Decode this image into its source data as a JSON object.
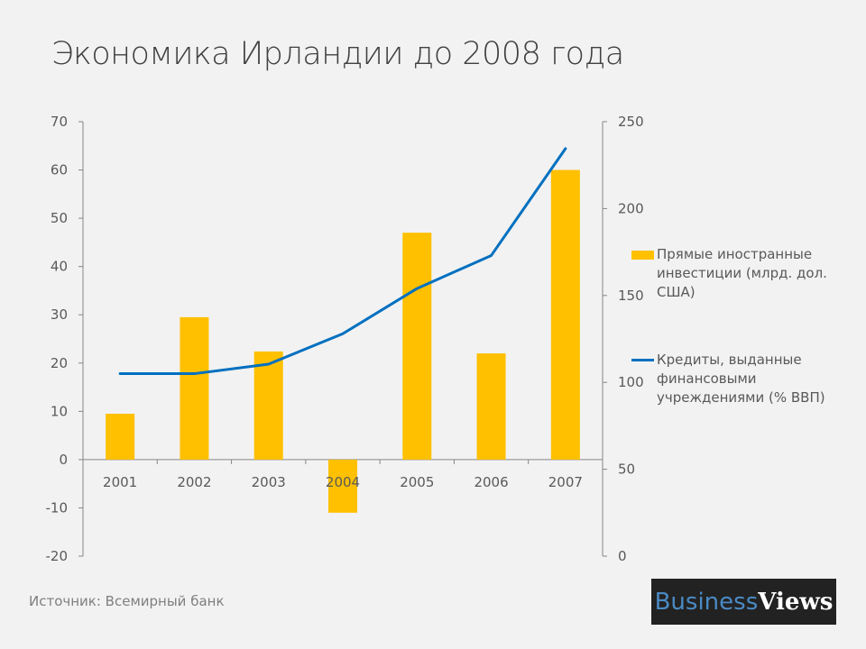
{
  "chart_data": {
    "type": "bar+line",
    "title": "Экономика Ирландии до 2008 года",
    "categories": [
      "2001",
      "2002",
      "2003",
      "2004",
      "2005",
      "2006",
      "2007"
    ],
    "series": [
      {
        "name": "Прямые иностранные инвестиции (млрд. дол. США)",
        "type": "bar",
        "axis": "left",
        "color": "#ffc000",
        "values": [
          9.5,
          29.5,
          22.4,
          -11,
          47,
          22,
          60
        ]
      },
      {
        "name": "Кредиты, выданные финансовыми учреждениями (% ВВП)",
        "type": "line",
        "axis": "right",
        "color": "#0070c0",
        "values": [
          105,
          105,
          110.5,
          128,
          154,
          173,
          234.5
        ]
      }
    ],
    "y_left": {
      "range": [
        -20,
        70
      ],
      "ticks": [
        "70",
        "60",
        "50",
        "40",
        "30",
        "20",
        "10",
        "0",
        "-10",
        "-20"
      ]
    },
    "y_right": {
      "range": [
        0,
        250
      ],
      "ticks": [
        "250",
        "200",
        "150",
        "100",
        "50",
        "0"
      ]
    },
    "grid": false,
    "legend_placement": "right"
  },
  "legend": {
    "bar_line1": "Прямые иностранные",
    "bar_line2": "инвестиции (млрд. дол.",
    "bar_line3": "США)",
    "line_line1": "Кредиты, выданные",
    "line_line2": "финансовыми",
    "line_line3": "учреждениями (% ВВП)"
  },
  "source": "Источник: Всемирный банк",
  "logo": {
    "part1": "Business",
    "part2": "Views"
  }
}
